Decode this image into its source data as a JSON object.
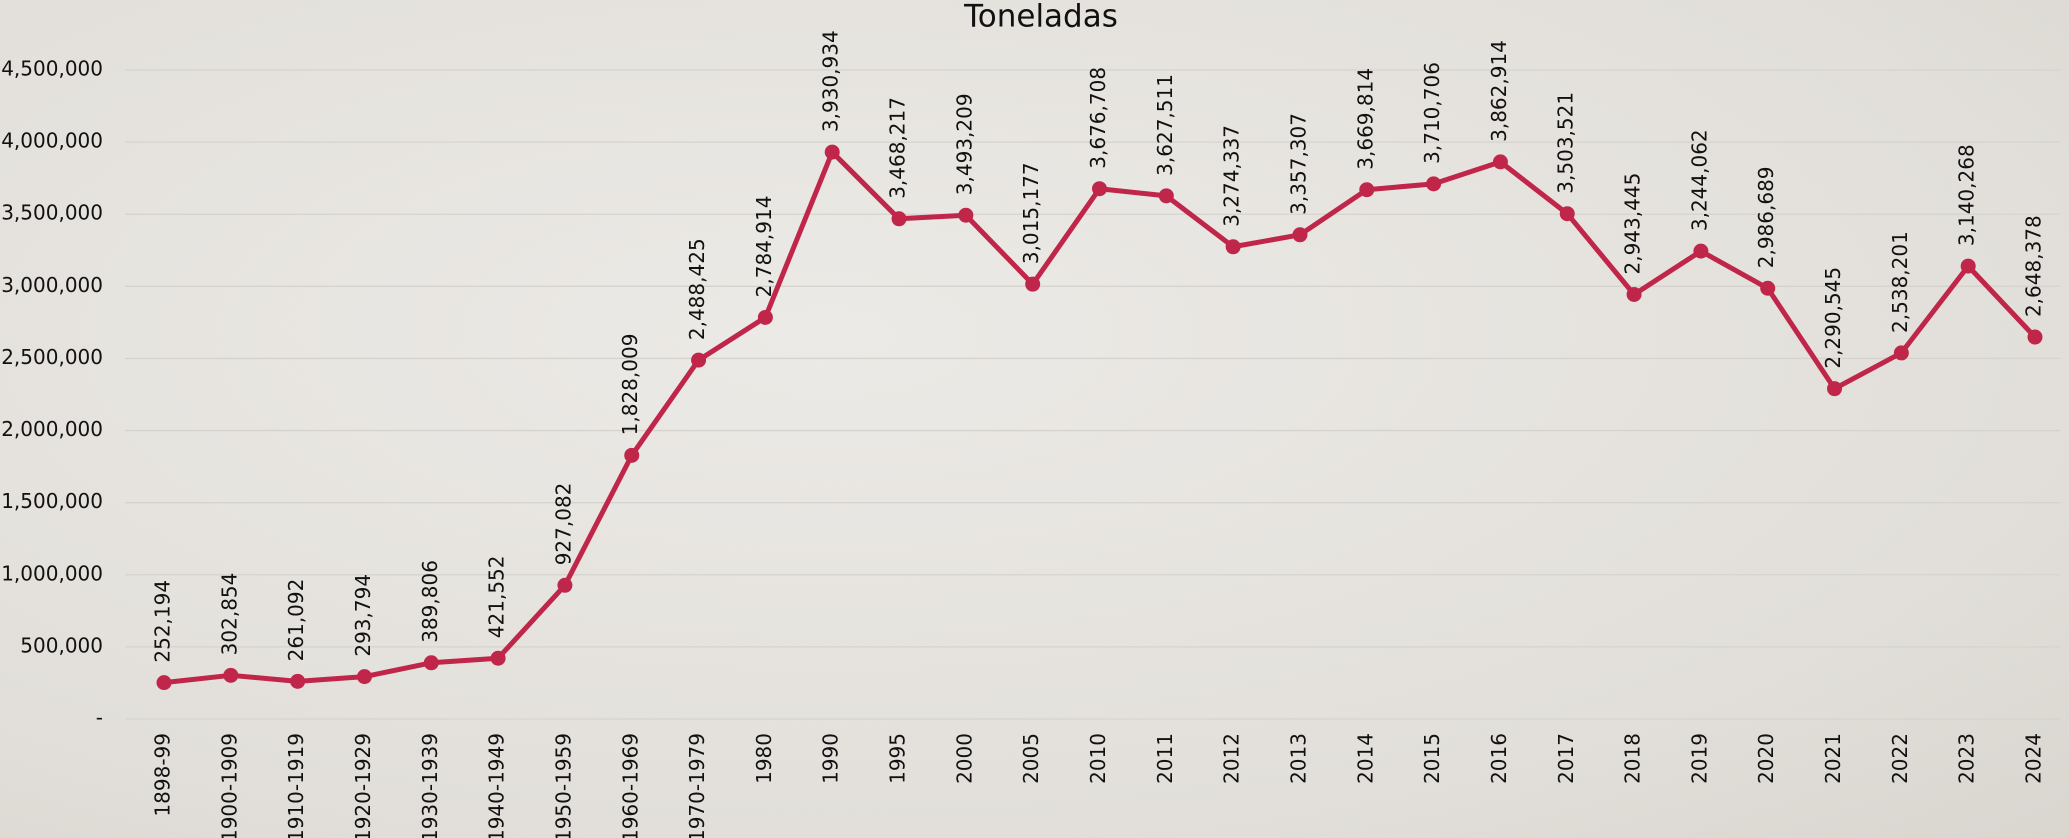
{
  "chart_data": {
    "type": "line",
    "title": "Toneladas",
    "categories": [
      "1898-99",
      "1900-1909",
      "1910-1919",
      "1920-1929",
      "1930-1939",
      "1940-1949",
      "1950-1959",
      "1960-1969",
      "1970-1979",
      "1980",
      "1990",
      "1995",
      "2000",
      "2005",
      "2010",
      "2011",
      "2012",
      "2013",
      "2014",
      "2015",
      "2016",
      "2017",
      "2018",
      "2019",
      "2020",
      "2021",
      "2022",
      "2023",
      "2024"
    ],
    "values": [
      252194,
      302854,
      261092,
      293794,
      389806,
      421552,
      927082,
      1828009,
      2488425,
      2784914,
      3930934,
      3468217,
      3493209,
      3015177,
      3676708,
      3627511,
      3274337,
      3357307,
      3669814,
      3710706,
      3862914,
      3503521,
      2943445,
      3244062,
      2986689,
      2290545,
      2538201,
      3140268,
      2648378
    ],
    "value_labels": [
      "252,194",
      "302,854",
      "261,092",
      "293,794",
      "389,806",
      "421,552",
      "927,082",
      "1,828,009",
      "2,488,425",
      "2,784,914",
      "3,930,934",
      "3,468,217",
      "3,493,209",
      "3,015,177",
      "3,676,708",
      "3,627,511",
      "3,274,337",
      "3,357,307",
      "3,669,814",
      "3,710,706",
      "3,862,914",
      "3,503,521",
      "2,943,445",
      "3,244,062",
      "2,986,689",
      "2,290,545",
      "2,538,201",
      "3,140,268",
      "2,648,378"
    ],
    "color": "#c0264a",
    "ylim": [
      0,
      4500000
    ],
    "yticks": [
      {
        "value": 0,
        "label": "-"
      },
      {
        "value": 500000,
        "label": "500,000"
      },
      {
        "value": 1000000,
        "label": "1,000,000"
      },
      {
        "value": 1500000,
        "label": "1,500,000"
      },
      {
        "value": 2000000,
        "label": "2,000,000"
      },
      {
        "value": 2500000,
        "label": "2,500,000"
      },
      {
        "value": 3000000,
        "label": "3,000,000"
      },
      {
        "value": 3500000,
        "label": "3,500,000"
      },
      {
        "value": 4000000,
        "label": "4,000,000"
      },
      {
        "value": 4500000,
        "label": "4,500,000"
      }
    ],
    "grid": true
  }
}
